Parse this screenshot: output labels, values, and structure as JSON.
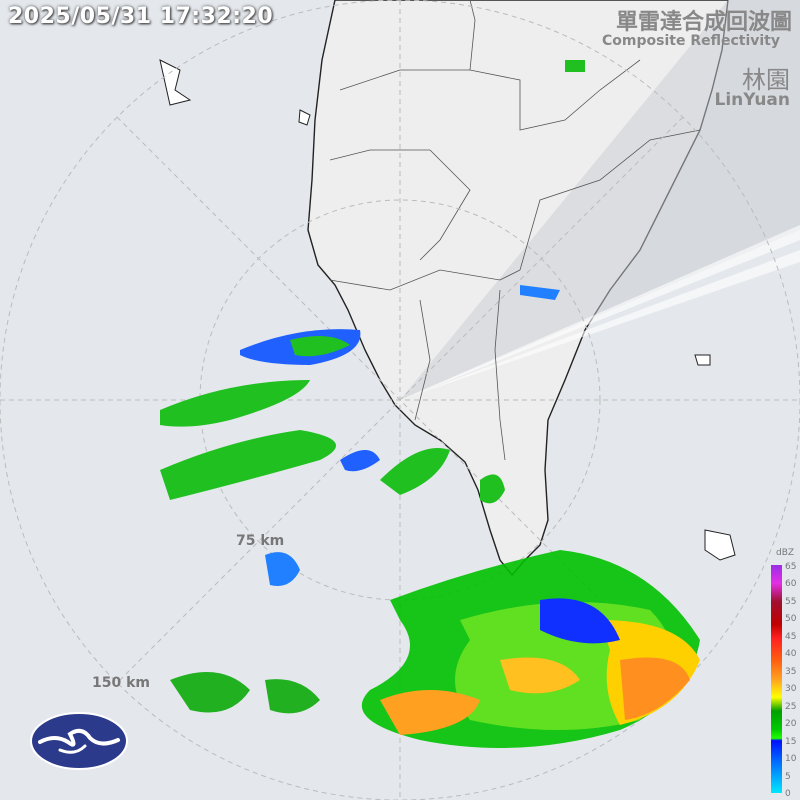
{
  "timestamp": "2025/05/31 17:32:20",
  "title_zh": "單雷達合成回波圖",
  "title_en": "Composite Reflectivity",
  "station_zh": "林園",
  "station_en": "LinYuan",
  "range_rings": [
    "75 km",
    "150 km"
  ],
  "legend": {
    "unit": "dBZ",
    "ticks": [
      "65",
      "60",
      "55",
      "50",
      "45",
      "40",
      "35",
      "30",
      "25",
      "20",
      "15",
      "10",
      "5",
      "0"
    ],
    "colors": {
      "low": "#00e8ff",
      "blue": "#0010ff",
      "green": "#00c800",
      "yellow": "#ffff00",
      "orange": "#ffa020",
      "red": "#ff2020",
      "darkred": "#a01030",
      "magenta": "#e32ee6",
      "purple": "#9a2ee6"
    }
  },
  "logo": {
    "name": "cwa-logo-icon",
    "color": "#2c3a8c"
  }
}
